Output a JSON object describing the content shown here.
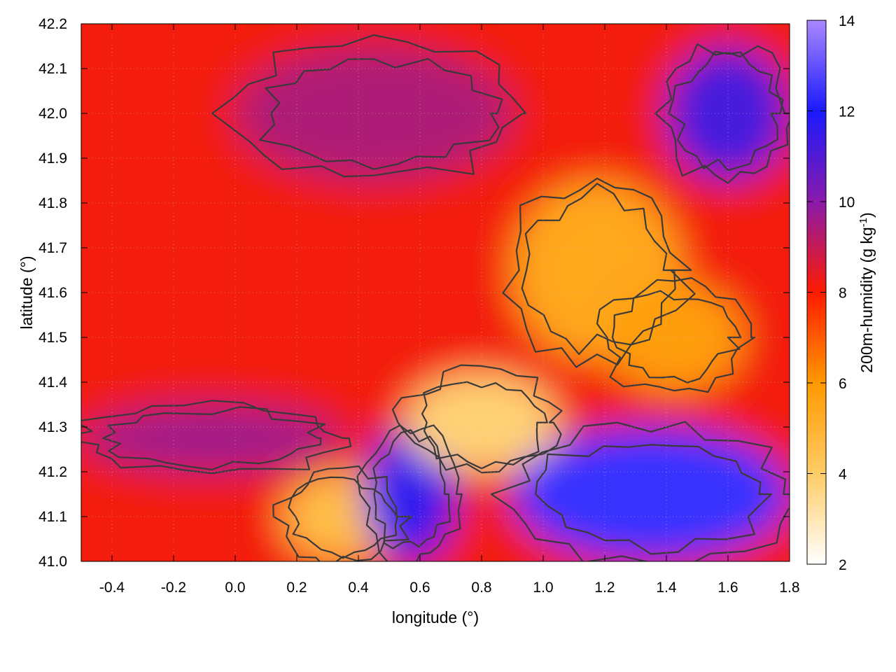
{
  "chart_data": {
    "type": "heatmap",
    "title": "",
    "xlabel": "longitude (°)",
    "ylabel": "latitude (°)",
    "xlim": [
      -0.5,
      1.8
    ],
    "ylim": [
      41.0,
      42.2
    ],
    "xticks": [
      -0.4,
      -0.2,
      0.0,
      0.2,
      0.4,
      0.6,
      0.8,
      1.0,
      1.2,
      1.4,
      1.6,
      1.8
    ],
    "xtick_labels": [
      "-0.4",
      "-0.2",
      "0.0",
      "0.2",
      "0.4",
      "0.6",
      "0.8",
      "1.0",
      "1.2",
      "1.4",
      "1.6",
      "1.8"
    ],
    "yticks": [
      41.0,
      41.1,
      41.2,
      41.3,
      41.4,
      41.5,
      41.6,
      41.7,
      41.8,
      41.9,
      42.0,
      42.1,
      42.2
    ],
    "ytick_labels": [
      "41.0",
      "41.1",
      "41.2",
      "41.3",
      "41.4",
      "41.5",
      "41.6",
      "41.7",
      "41.8",
      "41.9",
      "42.0",
      "42.1",
      "42.2"
    ],
    "grid": true,
    "colorbar": {
      "label": "200m-humidity (g kg",
      "label_sup": "-1",
      "label_end": ")",
      "range": [
        2,
        14
      ],
      "ticks": [
        2,
        4,
        6,
        8,
        10,
        12,
        14
      ],
      "tick_labels": [
        "2",
        "4",
        "6",
        "8",
        "10",
        "12",
        "14"
      ],
      "palette": [
        {
          "value": 2,
          "color": "#ffffff"
        },
        {
          "value": 4,
          "color": "#ffcc66"
        },
        {
          "value": 6,
          "color": "#ff9900"
        },
        {
          "value": 8,
          "color": "#ff1a00"
        },
        {
          "value": 10,
          "color": "#8a1aaa"
        },
        {
          "value": 12,
          "color": "#1a1aff"
        },
        {
          "value": 14,
          "color": "#aa88ff"
        }
      ]
    },
    "field_regions": [
      {
        "name": "background-west",
        "lon": [
          -0.5,
          1.8
        ],
        "lat": [
          41.0,
          42.2
        ],
        "value": 8.2
      },
      {
        "name": "west-purple-band",
        "lon": [
          -0.5,
          0.35
        ],
        "lat": [
          41.2,
          41.35
        ],
        "value": 9.6
      },
      {
        "name": "southwest-orange",
        "lon": [
          0.15,
          0.55
        ],
        "lat": [
          41.0,
          41.2
        ],
        "value": 4.6
      },
      {
        "name": "north-purple",
        "lon": [
          0.0,
          0.9
        ],
        "lat": [
          41.85,
          42.15
        ],
        "value": 9.4
      },
      {
        "name": "central-orange",
        "lon": [
          0.9,
          1.45
        ],
        "lat": [
          41.45,
          41.85
        ],
        "value": 5.4
      },
      {
        "name": "ebro-delta-blue",
        "lon": [
          0.42,
          0.72
        ],
        "lat": [
          41.0,
          41.3
        ],
        "value": 11.6
      },
      {
        "name": "coastal-yellow",
        "lon": [
          0.55,
          1.05
        ],
        "lat": [
          41.2,
          41.42
        ],
        "value": 3.8
      },
      {
        "name": "sea-blue",
        "lon": [
          0.9,
          1.8
        ],
        "lat": [
          41.0,
          41.3
        ],
        "value": 12.4
      },
      {
        "name": "northeast-blue",
        "lon": [
          1.4,
          1.8
        ],
        "lat": [
          41.85,
          42.15
        ],
        "value": 11.2
      },
      {
        "name": "east-orange",
        "lon": [
          1.2,
          1.65
        ],
        "lat": [
          41.38,
          41.62
        ],
        "value": 5.8
      }
    ],
    "colors": {
      "contour": "#3a3a3a",
      "grid": "#bbbbbb"
    }
  }
}
